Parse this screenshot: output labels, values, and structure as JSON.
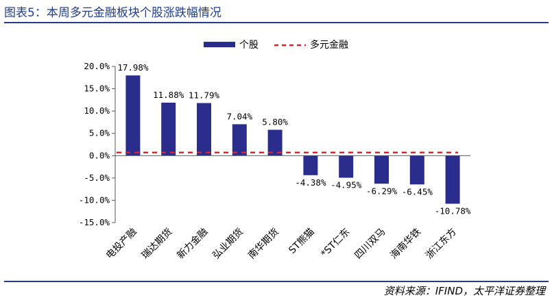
{
  "title": "图表5：本周多元金融板块个股涨跌幅情况",
  "source": "资料来源：IFIND，太平洋证券整理",
  "colors": {
    "bar": "#2b2d8c",
    "reference_line": "#e0202a",
    "title": "#1f3d8c",
    "rule": "#243b8a"
  },
  "chart_data": {
    "type": "bar",
    "categories": [
      "电投产融",
      "瑞达期货",
      "新力金融",
      "弘业期货",
      "南华期货",
      "ST熊猫",
      "*ST仁东",
      "四川双马",
      "海南华铁",
      "浙江东方"
    ],
    "series": [
      {
        "name": "个股",
        "values": [
          17.98,
          11.88,
          11.79,
          7.04,
          5.8,
          -4.38,
          -4.95,
          -6.29,
          -6.45,
          -10.78
        ]
      }
    ],
    "data_labels": [
      "17.98%",
      "11.88%",
      "11.79%",
      "7.04%",
      "5.80%",
      "-4.38%",
      "-4.95%",
      "-6.29%",
      "-6.45%",
      "-10.78%"
    ],
    "reference_line": {
      "name": "多元金融",
      "value": 0.7,
      "style": "dashed"
    },
    "y_ticks": [
      20,
      15,
      10,
      5,
      0,
      -5,
      -10,
      -15
    ],
    "y_tick_labels": [
      "20.0%",
      "15.0%",
      "10.0%",
      "5.0%",
      "0.0%",
      "-5.0%",
      "-10.0%",
      "-15.0%"
    ],
    "ylim": [
      -15,
      20
    ],
    "legend_position": "top-center",
    "grid": false
  }
}
